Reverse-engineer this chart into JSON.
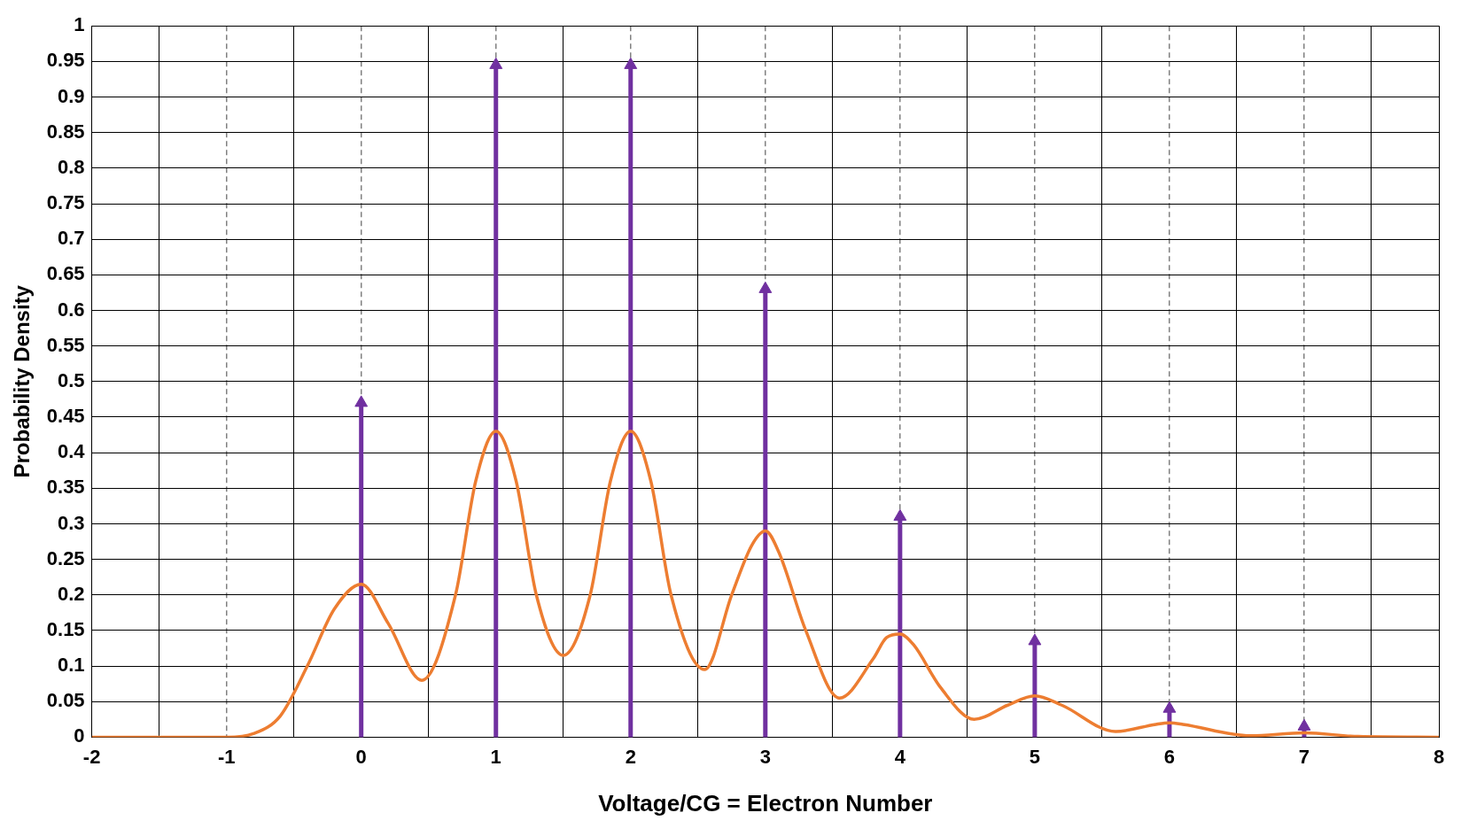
{
  "chart_data": {
    "type": "line",
    "xlabel": "Voltage/CG = Electron Number",
    "ylabel": "Probability Density",
    "series": [
      {
        "color": "#ed7d31",
        "x": [
          -2,
          -1,
          -0.8,
          -0.6,
          -0.4,
          -0.2,
          0,
          0.2,
          0.45,
          0.7,
          0.85,
          1,
          1.15,
          1.3,
          1.5,
          1.7,
          1.85,
          2,
          2.15,
          2.3,
          2.55,
          2.75,
          2.9,
          3,
          3.1,
          3.3,
          3.55,
          3.8,
          3.9,
          4,
          4.1,
          4.3,
          4.55,
          4.8,
          5,
          5.2,
          5.6,
          5.9,
          6,
          6.1,
          6.6,
          7,
          7.4,
          8
        ],
        "values": [
          0,
          0,
          0.005,
          0.03,
          0.1,
          0.18,
          0.215,
          0.16,
          0.08,
          0.2,
          0.36,
          0.43,
          0.36,
          0.2,
          0.115,
          0.2,
          0.36,
          0.43,
          0.36,
          0.2,
          0.095,
          0.2,
          0.27,
          0.29,
          0.26,
          0.15,
          0.055,
          0.11,
          0.14,
          0.145,
          0.13,
          0.07,
          0.025,
          0.045,
          0.058,
          0.045,
          0.008,
          0.018,
          0.02,
          0.018,
          0.002,
          0.006,
          0.001,
          0
        ]
      },
      {
        "type": "lollipop",
        "marker": "triangle",
        "color": "#7030a0",
        "x": [
          0,
          1,
          2,
          3,
          4,
          5,
          6,
          7
        ],
        "values": [
          0.47,
          0.945,
          0.945,
          0.63,
          0.31,
          0.135,
          0.04,
          0.015
        ]
      }
    ],
    "xlim": [
      -2,
      8
    ],
    "xticks": [
      -2,
      {
        "value": -1.5,
        "label": null
      },
      -1,
      {
        "value": -0.5,
        "label": null
      },
      0,
      {
        "value": 0.5,
        "label": null
      },
      1,
      {
        "value": 1.5,
        "label": null
      },
      2,
      {
        "value": 2.5,
        "label": null
      },
      3,
      {
        "value": 3.5,
        "label": null
      },
      4,
      {
        "value": 4.5,
        "label": null
      },
      5,
      {
        "value": 5.5,
        "label": null
      },
      6,
      {
        "value": 6.5,
        "label": null
      },
      7,
      {
        "value": 7.5,
        "label": null
      },
      8
    ],
    "ylim": [
      0,
      1
    ],
    "yticks": [
      0,
      0.05,
      0.1,
      0.15,
      0.2,
      0.25,
      0.3,
      0.35,
      0.4,
      0.45,
      0.5,
      0.55,
      0.6,
      0.65,
      0.7,
      0.75,
      0.8,
      0.85,
      0.9,
      0.95,
      1
    ],
    "grid": true,
    "legend": false
  }
}
